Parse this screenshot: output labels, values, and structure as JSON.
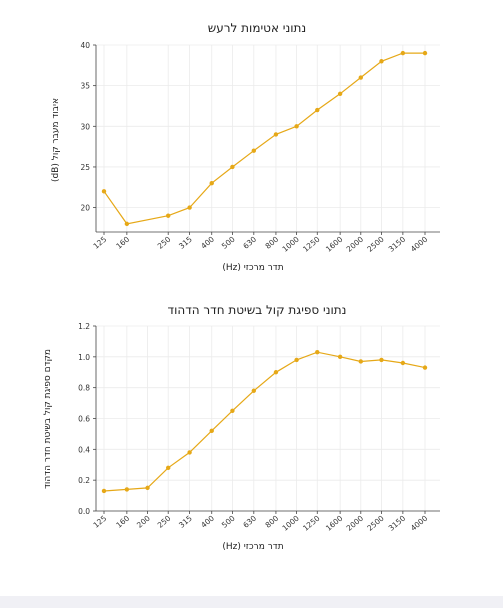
{
  "chart_data": [
    {
      "type": "line",
      "title": "נתוני אטימות לרעש",
      "xlabel": "תדר מרכזי (Hz)",
      "ylabel": "איבוד מעבר קול (dB)",
      "x_positions": [
        125,
        160,
        250,
        315,
        400,
        500,
        630,
        800,
        1000,
        1250,
        1600,
        2000,
        2500,
        3150,
        4000
      ],
      "categories": [
        "125",
        "160",
        "250",
        "315",
        "400",
        "500",
        "630",
        "800",
        "1000",
        "1250",
        "1600",
        "2000",
        "2500",
        "3150",
        "4000"
      ],
      "values": [
        22,
        18,
        19,
        20,
        23,
        25,
        27,
        29,
        30,
        32,
        34,
        36,
        38,
        39,
        39
      ],
      "ylim": [
        17,
        40
      ],
      "yticks": [
        20,
        25,
        30,
        35,
        40
      ],
      "grid": true,
      "color": "#e6a817"
    },
    {
      "type": "line",
      "title": "נתוני ספיגת קול בשיטת חדר הדהוד",
      "xlabel": "תדר מרכזי (Hz)",
      "ylabel": "מקדם ספיגת קול בשיטת חדר הדהוד",
      "x_positions": [
        125,
        160,
        200,
        250,
        315,
        400,
        500,
        630,
        800,
        1000,
        1250,
        1600,
        2000,
        2500,
        3150,
        4000
      ],
      "categories": [
        "125",
        "160",
        "200",
        "250",
        "315",
        "400",
        "500",
        "630",
        "800",
        "1000",
        "1250",
        "1600",
        "2000",
        "2500",
        "3150",
        "4000"
      ],
      "values": [
        0.13,
        0.14,
        0.15,
        0.28,
        0.38,
        0.52,
        0.65,
        0.78,
        0.9,
        0.98,
        1.03,
        1.0,
        0.97,
        0.98,
        0.96,
        0.93
      ],
      "ylim": [
        0,
        1.2
      ],
      "yticks": [
        0.0,
        0.2,
        0.4,
        0.6,
        0.8,
        1.0,
        1.2
      ],
      "grid": true,
      "color": "#e6a817"
    }
  ]
}
